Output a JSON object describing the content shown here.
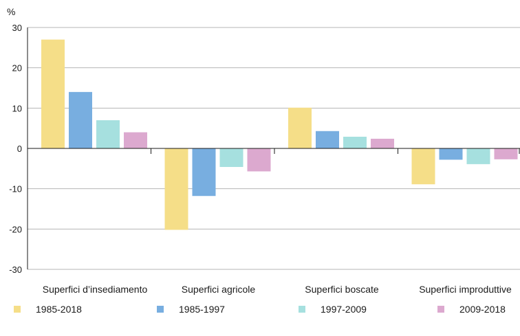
{
  "chart_data": {
    "type": "bar",
    "unit_label": "%",
    "categories": [
      "Superfici d’insediamento",
      "Superfici agricole",
      "Superfici boscate",
      "Superfici improduttive"
    ],
    "series": [
      {
        "name": "1985-2018",
        "color": "#f5de88",
        "values": [
          27,
          -20.2,
          10.1,
          -8.9
        ]
      },
      {
        "name": "1985-1997",
        "color": "#78aee0",
        "values": [
          14,
          -11.8,
          4.3,
          -2.8
        ]
      },
      {
        "name": "1997-2009",
        "color": "#a6e0df",
        "values": [
          7,
          -4.6,
          2.9,
          -3.9
        ]
      },
      {
        "name": "2009-2018",
        "color": "#dca9cf",
        "values": [
          4,
          -5.7,
          2.4,
          -2.7
        ]
      }
    ],
    "y_ticks": [
      "30",
      "20",
      "10",
      "0",
      "-10",
      "-20",
      "-30"
    ],
    "ylim": [
      -30,
      30
    ],
    "grid": true,
    "legend_position": "bottom"
  }
}
